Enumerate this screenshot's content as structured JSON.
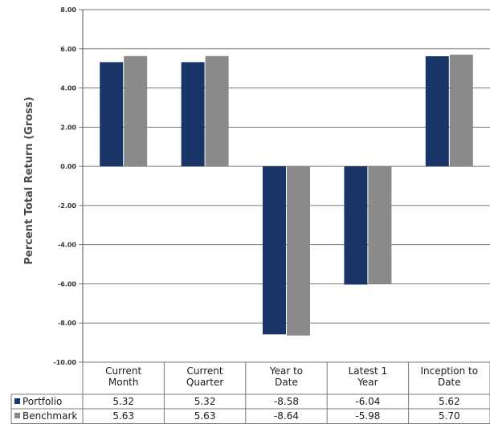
{
  "chart_data": {
    "type": "bar",
    "ylabel": "Percent Total Return (Gross)",
    "xlabel": "",
    "ylim": [
      -10,
      8
    ],
    "yticks": [
      "8.00",
      "6.00",
      "4.00",
      "2.00",
      "0.00",
      "-2.00",
      "-4.00",
      "-6.00",
      "-8.00",
      "-10.00"
    ],
    "ytick_values": [
      8,
      6,
      4,
      2,
      0,
      -2,
      -4,
      -6,
      -8,
      -10
    ],
    "grid": true,
    "legend_position": "table-left",
    "categories": [
      [
        "Current",
        "Month"
      ],
      [
        "Current",
        "Quarter"
      ],
      [
        "Year to",
        "Date"
      ],
      [
        "Latest 1",
        "Year"
      ],
      [
        "Inception to",
        "Date"
      ]
    ],
    "series": [
      {
        "name": "Portfolio",
        "color": "#1a3668",
        "values": [
          5.32,
          5.32,
          -8.58,
          -6.04,
          5.62
        ],
        "labels": [
          "5.32",
          "5.32",
          "-8.58",
          "-6.04",
          "5.62"
        ]
      },
      {
        "name": "Benchmark",
        "color": "#8a8a8a",
        "values": [
          5.63,
          5.63,
          -8.64,
          -5.98,
          5.7
        ],
        "labels": [
          "5.63",
          "5.63",
          "-8.64",
          "-5.98",
          "5.70"
        ]
      }
    ]
  }
}
